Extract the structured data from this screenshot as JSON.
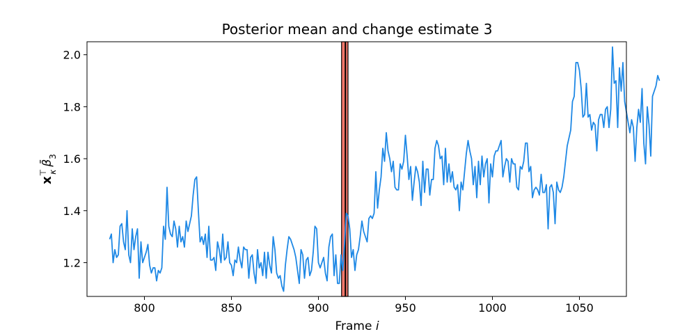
{
  "chart_data": {
    "type": "line",
    "title": "Posterior mean and change estimate 3",
    "xlabel": "Frame ",
    "xlabel_var": "i",
    "ylabel_main": "x",
    "ylabel_sup": "⊤",
    "ylabel_sub": "κ",
    "ylabel_beta": "β̄",
    "ylabel_beta_sub": "3",
    "xlim": [
      767,
      1077
    ],
    "ylim": [
      1.07,
      2.05
    ],
    "xticks": [
      800,
      850,
      900,
      950,
      1000,
      1050
    ],
    "yticks": [
      1.2,
      1.4,
      1.6,
      1.8,
      2.0
    ],
    "xtick_labels": [
      "800",
      "850",
      "900",
      "950",
      "1000",
      "1050"
    ],
    "ytick_labels": [
      "1.2",
      "1.4",
      "1.6",
      "1.8",
      "2.0"
    ],
    "grid": false,
    "line_color": "#1e88e5",
    "change_band": {
      "x0": 913.3,
      "x1": 917.0,
      "color": "#f4796c"
    },
    "change_line": {
      "x": 915.5,
      "color": "#000000"
    },
    "x_start": 780,
    "x_step": 1,
    "y": [
      1.29,
      1.31,
      1.2,
      1.25,
      1.22,
      1.23,
      1.34,
      1.35,
      1.28,
      1.25,
      1.4,
      1.23,
      1.2,
      1.33,
      1.25,
      1.3,
      1.33,
      1.14,
      1.28,
      1.2,
      1.22,
      1.24,
      1.27,
      1.19,
      1.16,
      1.18,
      1.18,
      1.13,
      1.17,
      1.16,
      1.18,
      1.34,
      1.29,
      1.49,
      1.34,
      1.31,
      1.3,
      1.36,
      1.33,
      1.26,
      1.34,
      1.28,
      1.3,
      1.26,
      1.36,
      1.32,
      1.35,
      1.38,
      1.46,
      1.52,
      1.53,
      1.4,
      1.28,
      1.3,
      1.27,
      1.31,
      1.22,
      1.34,
      1.21,
      1.21,
      1.22,
      1.17,
      1.28,
      1.25,
      1.2,
      1.31,
      1.21,
      1.22,
      1.28,
      1.2,
      1.19,
      1.15,
      1.21,
      1.2,
      1.26,
      1.21,
      1.18,
      1.26,
      1.25,
      1.25,
      1.14,
      1.22,
      1.23,
      1.16,
      1.12,
      1.25,
      1.18,
      1.2,
      1.15,
      1.24,
      1.14,
      1.24,
      1.19,
      1.16,
      1.3,
      1.25,
      1.16,
      1.14,
      1.15,
      1.11,
      1.09,
      1.19,
      1.25,
      1.3,
      1.29,
      1.27,
      1.25,
      1.22,
      1.17,
      1.12,
      1.25,
      1.23,
      1.14,
      1.21,
      1.22,
      1.15,
      1.17,
      1.24,
      1.34,
      1.33,
      1.2,
      1.18,
      1.2,
      1.22,
      1.16,
      1.13,
      1.26,
      1.3,
      1.31,
      1.15,
      1.23,
      1.12,
      1.12,
      1.23,
      1.17,
      1.27,
      1.39,
      1.38,
      1.33,
      1.22,
      1.25,
      1.17,
      1.23,
      1.25,
      1.3,
      1.36,
      1.32,
      1.3,
      1.28,
      1.37,
      1.38,
      1.37,
      1.39,
      1.55,
      1.41,
      1.48,
      1.53,
      1.64,
      1.59,
      1.7,
      1.63,
      1.6,
      1.55,
      1.59,
      1.49,
      1.48,
      1.48,
      1.58,
      1.56,
      1.59,
      1.69,
      1.61,
      1.52,
      1.57,
      1.44,
      1.51,
      1.57,
      1.55,
      1.51,
      1.42,
      1.59,
      1.47,
      1.56,
      1.56,
      1.46,
      1.52,
      1.52,
      1.64,
      1.67,
      1.65,
      1.6,
      1.61,
      1.5,
      1.64,
      1.51,
      1.58,
      1.51,
      1.55,
      1.49,
      1.48,
      1.5,
      1.4,
      1.51,
      1.48,
      1.55,
      1.62,
      1.67,
      1.63,
      1.6,
      1.5,
      1.57,
      1.45,
      1.59,
      1.5,
      1.61,
      1.53,
      1.58,
      1.6,
      1.43,
      1.58,
      1.53,
      1.61,
      1.63,
      1.63,
      1.65,
      1.67,
      1.53,
      1.57,
      1.6,
      1.59,
      1.51,
      1.6,
      1.58,
      1.58,
      1.49,
      1.48,
      1.57,
      1.56,
      1.59,
      1.66,
      1.66,
      1.55,
      1.57,
      1.45,
      1.48,
      1.49,
      1.48,
      1.46,
      1.54,
      1.47,
      1.47,
      1.5,
      1.33,
      1.49,
      1.5,
      1.47,
      1.35,
      1.51,
      1.48,
      1.47,
      1.49,
      1.53,
      1.59,
      1.65,
      1.68,
      1.71,
      1.82,
      1.84,
      1.97,
      1.97,
      1.94,
      1.87,
      1.76,
      1.77,
      1.89,
      1.76,
      1.77,
      1.71,
      1.74,
      1.73,
      1.63,
      1.75,
      1.77,
      1.77,
      1.72,
      1.79,
      1.8,
      1.72,
      1.79,
      2.03,
      1.89,
      1.9,
      1.72,
      1.95,
      1.86,
      1.97,
      1.82,
      1.78,
      1.74,
      1.7,
      1.75,
      1.72,
      1.59,
      1.72,
      1.79,
      1.74,
      1.87,
      1.66,
      1.58,
      1.8,
      1.73,
      1.61,
      1.84,
      1.86,
      1.88,
      1.92,
      1.9
    ]
  }
}
